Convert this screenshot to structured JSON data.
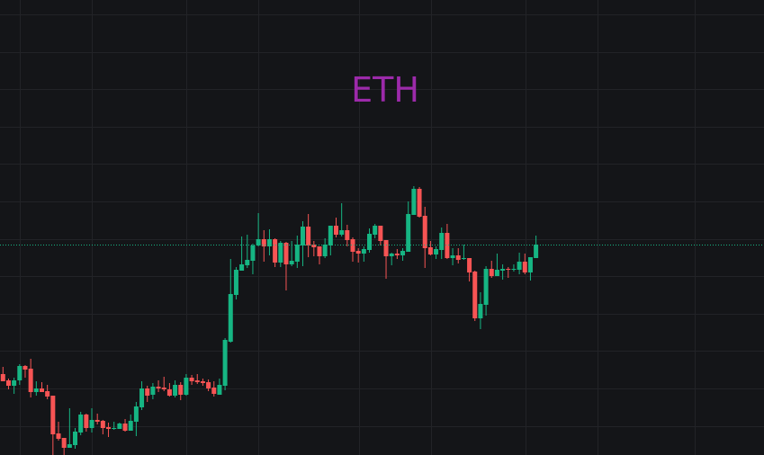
{
  "chart_data": {
    "type": "candlestick",
    "title": "ETH",
    "xlabel": "",
    "ylabel": "",
    "ylim": [
      0,
      506
    ],
    "grid": true,
    "last_price_line": 234,
    "colors": {
      "up": "#16b583",
      "down": "#f75454",
      "title": "#9c2aaa",
      "background": "#141518",
      "grid": "#222327"
    },
    "ohlc": [
      [
        90,
        98,
        82,
        82
      ],
      [
        83,
        85,
        73,
        77
      ],
      [
        77,
        86,
        68,
        83
      ],
      [
        83,
        101,
        78,
        99
      ],
      [
        99,
        100,
        86,
        95
      ],
      [
        96,
        107,
        64,
        70
      ],
      [
        70,
        82,
        66,
        74
      ],
      [
        74,
        81,
        70,
        70
      ],
      [
        71,
        78,
        62,
        65
      ],
      [
        66,
        66,
        0,
        23
      ],
      [
        24,
        37,
        16,
        18
      ],
      [
        19,
        19,
        0,
        8
      ],
      [
        8,
        52,
        8,
        12
      ],
      [
        11,
        30,
        7,
        26
      ],
      [
        25,
        48,
        22,
        45
      ],
      [
        45,
        46,
        26,
        30
      ],
      [
        30,
        52,
        25,
        39
      ],
      [
        39,
        46,
        34,
        37
      ],
      [
        38,
        39,
        23,
        30
      ],
      [
        31,
        36,
        20,
        29
      ],
      [
        29,
        37,
        28,
        30
      ],
      [
        29,
        36,
        29,
        35
      ],
      [
        35,
        40,
        26,
        27
      ],
      [
        27,
        45,
        27,
        38
      ],
      [
        37,
        59,
        21,
        54
      ],
      [
        53,
        82,
        50,
        74
      ],
      [
        74,
        77,
        59,
        66
      ],
      [
        67,
        80,
        62,
        76
      ],
      [
        76,
        83,
        70,
        74
      ],
      [
        75,
        87,
        71,
        73
      ],
      [
        73,
        80,
        65,
        66
      ],
      [
        66,
        83,
        64,
        78
      ],
      [
        78,
        81,
        61,
        67
      ],
      [
        67,
        90,
        66,
        86
      ],
      [
        86,
        89,
        78,
        82
      ],
      [
        83,
        90,
        79,
        81
      ],
      [
        82,
        85,
        77,
        80
      ],
      [
        81,
        84,
        71,
        74
      ],
      [
        75,
        82,
        65,
        68
      ],
      [
        67,
        85,
        67,
        78
      ],
      [
        77,
        130,
        72,
        128
      ],
      [
        126,
        218,
        125,
        179
      ],
      [
        178,
        209,
        173,
        206
      ],
      [
        205,
        243,
        205,
        212
      ],
      [
        211,
        245,
        208,
        217
      ],
      [
        216,
        235,
        201,
        233
      ],
      [
        233,
        269,
        232,
        240
      ],
      [
        240,
        250,
        215,
        232
      ],
      [
        232,
        251,
        222,
        240
      ],
      [
        240,
        241,
        209,
        214
      ],
      [
        214,
        238,
        209,
        236
      ],
      [
        236,
        237,
        183,
        212
      ],
      [
        212,
        238,
        210,
        216
      ],
      [
        215,
        244,
        208,
        234
      ],
      [
        233,
        260,
        210,
        254
      ],
      [
        254,
        268,
        220,
        233
      ],
      [
        234,
        238,
        221,
        231
      ],
      [
        232,
        232,
        212,
        221
      ],
      [
        221,
        241,
        219,
        234
      ],
      [
        233,
        255,
        222,
        255
      ],
      [
        255,
        264,
        242,
        245
      ],
      [
        245,
        280,
        243,
        250
      ],
      [
        250,
        256,
        232,
        239
      ],
      [
        240,
        242,
        215,
        226
      ],
      [
        227,
        230,
        214,
        224
      ],
      [
        224,
        232,
        215,
        229
      ],
      [
        228,
        252,
        225,
        246
      ],
      [
        245,
        257,
        241,
        255
      ],
      [
        255,
        255,
        233,
        238
      ],
      [
        239,
        239,
        196,
        221
      ],
      [
        221,
        225,
        211,
        224
      ],
      [
        224,
        229,
        218,
        222
      ],
      [
        222,
        230,
        216,
        227
      ],
      [
        226,
        282,
        226,
        268
      ],
      [
        267,
        299,
        267,
        296
      ],
      [
        296,
        298,
        264,
        265
      ],
      [
        266,
        276,
        208,
        230
      ],
      [
        231,
        238,
        222,
        223
      ],
      [
        223,
        232,
        218,
        229
      ],
      [
        228,
        253,
        218,
        247
      ],
      [
        247,
        257,
        218,
        219
      ],
      [
        219,
        230,
        211,
        222
      ],
      [
        222,
        230,
        213,
        217
      ],
      [
        218,
        234,
        217,
        219
      ],
      [
        219,
        219,
        193,
        203
      ],
      [
        204,
        205,
        149,
        152
      ],
      [
        152,
        181,
        140,
        168
      ],
      [
        167,
        210,
        155,
        207
      ],
      [
        207,
        216,
        197,
        199
      ],
      [
        199,
        224,
        199,
        206
      ],
      [
        205,
        212,
        195,
        207
      ],
      [
        207,
        209,
        197,
        206
      ],
      [
        206,
        212,
        204,
        207
      ],
      [
        206,
        225,
        201,
        215
      ],
      [
        215,
        224,
        201,
        203
      ],
      [
        203,
        220,
        194,
        220
      ],
      [
        219,
        244,
        219,
        234
      ]
    ]
  }
}
